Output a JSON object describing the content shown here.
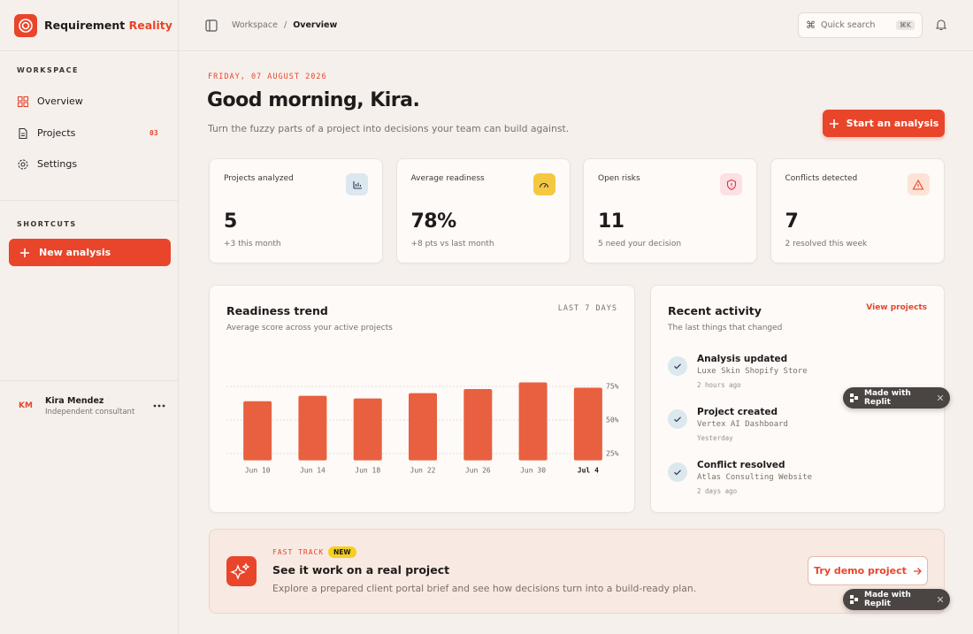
{
  "sidebar": {
    "brand_name": "Requirement",
    "brand_accent": "Reality",
    "workspace_title": "WORKSPACE",
    "nav": [
      {
        "label": "Overview"
      },
      {
        "label": "Projects",
        "badge": "03"
      },
      {
        "label": "Settings"
      }
    ],
    "shortcuts_title": "SHORTCUTS",
    "new_button": "New analysis",
    "user": {
      "initials": "KM",
      "name": "Kira Mendez",
      "role": "Independent consultant"
    }
  },
  "topbar": {
    "breadcrumb": [
      "Workspace",
      "Overview"
    ],
    "separator": "/",
    "search_placeholder": "Quick search",
    "search_shortcut": "⌘K"
  },
  "greeting": {
    "date": "FRIDAY, 07 AUGUST 2026",
    "title": "Good morning, Kira.",
    "subtitle": "Turn the fuzzy parts of a project into decisions your team can build against.",
    "cta": "Start an analysis"
  },
  "stats": [
    {
      "label": "Projects analyzed",
      "value": "5",
      "note": "+3 this month"
    },
    {
      "label": "Average readiness",
      "value": "78%",
      "note": "+8 pts vs last month"
    },
    {
      "label": "Open risks",
      "value": "11",
      "note": "5 need your decision"
    },
    {
      "label": "Conflicts detected",
      "value": "7",
      "note": "2 resolved this week"
    }
  ],
  "chart_data": {
    "type": "bar",
    "title": "Readiness trend",
    "subtitle": "Average score across your active projects",
    "annotation": "LAST 7 DAYS",
    "categories": [
      "Jun 10",
      "Jun 14",
      "Jun 18",
      "Jun 22",
      "Jun 26",
      "Jun 30",
      "Jul 4"
    ],
    "values": [
      64,
      68,
      66,
      70,
      73,
      78,
      74
    ],
    "color": "#e8603f",
    "ylim": [
      20,
      80
    ],
    "yticks": [
      {
        "value": 25,
        "label": "25%"
      },
      {
        "value": 50,
        "label": "50%"
      },
      {
        "value": 75,
        "label": "75%"
      }
    ],
    "grid": true
  },
  "activity": {
    "title": "Recent activity",
    "subtitle": "The last things that changed",
    "link": "View projects",
    "items": [
      {
        "title": "Analysis updated",
        "project": "Luxe Skin Shopify Store",
        "time": "2 hours ago"
      },
      {
        "title": "Project created",
        "project": "Vertex AI Dashboard",
        "time": "Yesterday"
      },
      {
        "title": "Conflict resolved",
        "project": "Atlas Consulting Website",
        "time": "2 days ago"
      }
    ]
  },
  "banner": {
    "eyebrow": "FAST TRACK",
    "tag": "NEW",
    "title": "See it work on a real project",
    "text": "Explore a prepared client portal brief and see how decisions turn into a build-ready plan.",
    "button": "Try demo project"
  },
  "badges": [
    "Made with Replit",
    "Made with Replit"
  ]
}
